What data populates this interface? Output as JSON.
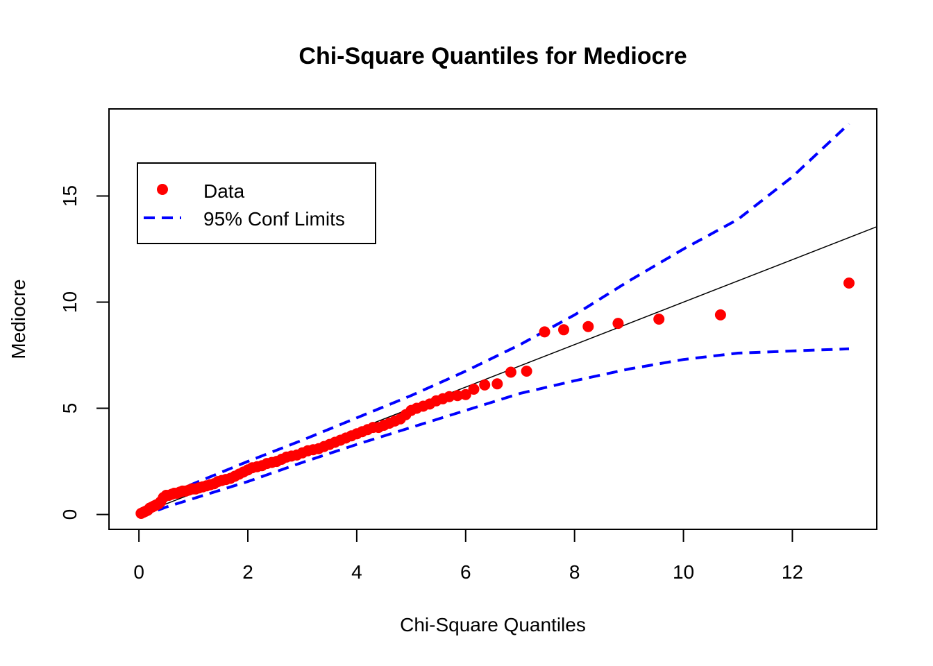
{
  "chart_data": {
    "type": "scatter",
    "title": "Chi-Square Quantiles for Mediocre",
    "xlabel": "Chi-Square Quantiles",
    "ylabel": "Mediocre",
    "xlim": [
      -0.55,
      13.55
    ],
    "ylim": [
      -0.7,
      19.1
    ],
    "xticks": [
      0,
      2,
      4,
      6,
      8,
      10,
      12
    ],
    "yticks": [
      0,
      5,
      10,
      15
    ],
    "grid": false,
    "legend_position": "top-left",
    "legend": [
      {
        "label": "Data",
        "kind": "point",
        "color": "#FF0000"
      },
      {
        "label": "95% Conf Limits",
        "kind": "dashed-line",
        "color": "#0000FF"
      }
    ],
    "reference_line": {
      "x": [
        0,
        13.55
      ],
      "y": [
        0,
        13.55
      ],
      "color": "#000000"
    },
    "series": [
      {
        "name": "Data",
        "kind": "points",
        "color": "#FF0000",
        "x": [
          0.04,
          0.08,
          0.12,
          0.16,
          0.2,
          0.24,
          0.28,
          0.32,
          0.36,
          0.4,
          0.45,
          0.5,
          0.55,
          0.6,
          0.65,
          0.7,
          0.75,
          0.8,
          0.86,
          0.92,
          0.98,
          1.04,
          1.1,
          1.17,
          1.24,
          1.31,
          1.38,
          1.45,
          1.52,
          1.6,
          1.68,
          1.76,
          1.84,
          1.92,
          2.0,
          2.08,
          2.17,
          2.26,
          2.35,
          2.44,
          2.53,
          2.62,
          2.71,
          2.8,
          2.9,
          3.0,
          3.1,
          3.2,
          3.3,
          3.4,
          3.5,
          3.6,
          3.7,
          3.8,
          3.9,
          4.0,
          4.1,
          4.2,
          4.3,
          4.4,
          4.5,
          4.6,
          4.7,
          4.8,
          4.9,
          5.0,
          5.1,
          5.22,
          5.34,
          5.46,
          5.58,
          5.7,
          5.85,
          6.0,
          6.15,
          6.35,
          6.58,
          6.83,
          7.12,
          7.45,
          7.8,
          8.25,
          8.8,
          9.55,
          10.68,
          13.04
        ],
        "y": [
          0.05,
          0.1,
          0.15,
          0.2,
          0.3,
          0.35,
          0.4,
          0.45,
          0.5,
          0.6,
          0.8,
          0.9,
          0.9,
          0.95,
          1.0,
          1.0,
          1.05,
          1.1,
          1.1,
          1.15,
          1.2,
          1.2,
          1.25,
          1.3,
          1.35,
          1.4,
          1.45,
          1.55,
          1.6,
          1.65,
          1.7,
          1.8,
          1.9,
          2.0,
          2.1,
          2.2,
          2.25,
          2.3,
          2.4,
          2.45,
          2.5,
          2.6,
          2.7,
          2.75,
          2.8,
          2.9,
          3.0,
          3.05,
          3.1,
          3.2,
          3.3,
          3.4,
          3.5,
          3.6,
          3.7,
          3.8,
          3.9,
          4.0,
          4.1,
          4.1,
          4.2,
          4.3,
          4.4,
          4.5,
          4.7,
          4.9,
          5.0,
          5.1,
          5.2,
          5.35,
          5.45,
          5.55,
          5.6,
          5.65,
          5.9,
          6.1,
          6.15,
          6.7,
          6.75,
          8.6,
          8.7,
          8.85,
          9.0,
          9.2,
          9.4,
          10.9
        ]
      },
      {
        "name": "95% Conf Limits",
        "kind": "dashed-line",
        "color": "#0000FF",
        "x": [
          0.04,
          0.5,
          1.0,
          2.0,
          3.0,
          4.0,
          5.0,
          6.0,
          7.0,
          8.0,
          9.0,
          10.0,
          11.0,
          12.0,
          13.04
        ],
        "y": [
          0.18,
          0.9,
          1.45,
          2.5,
          3.5,
          4.55,
          5.6,
          6.75,
          8.0,
          9.4,
          11.0,
          12.5,
          13.9,
          15.9,
          18.4
        ]
      },
      {
        "name": "95% Conf Limits",
        "kind": "dashed-line",
        "color": "#0000FF",
        "x": [
          0.04,
          0.5,
          1.0,
          2.0,
          3.0,
          4.0,
          5.0,
          6.0,
          7.0,
          8.0,
          9.0,
          10.0,
          11.0,
          12.0,
          13.04
        ],
        "y": [
          -0.1,
          0.35,
          0.75,
          1.55,
          2.45,
          3.3,
          4.1,
          4.9,
          5.7,
          6.3,
          6.85,
          7.3,
          7.6,
          7.7,
          7.8
        ]
      }
    ]
  }
}
